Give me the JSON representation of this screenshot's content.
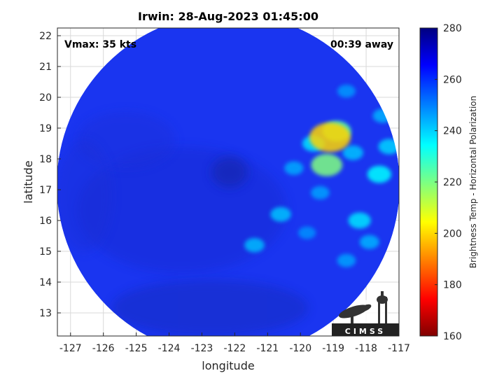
{
  "chart_data": {
    "type": "heatmap",
    "title": "Irwin: 28-Aug-2023 01:45:00",
    "xlabel": "longitude",
    "ylabel": "latitude",
    "xlim": [
      -127.4,
      -117
    ],
    "ylim": [
      12.25,
      22.25
    ],
    "x_ticks": [
      -127,
      -126,
      -125,
      -124,
      -123,
      -122,
      -121,
      -120,
      -119,
      -118,
      -117
    ],
    "y_ticks": [
      13,
      14,
      15,
      16,
      17,
      18,
      19,
      20,
      21,
      22
    ],
    "x_tick_labels": [
      "-127",
      "-126",
      "-125",
      "-124",
      "-123",
      "-122",
      "-121",
      "-120",
      "-119",
      "-118",
      "-117"
    ],
    "y_tick_labels": [
      "13",
      "14",
      "15",
      "16",
      "17",
      "18",
      "19",
      "20",
      "21",
      "22"
    ],
    "grid": true,
    "annotations": {
      "vmax": "Vmax: 35 kts",
      "time_away": "00:39 away"
    },
    "storm_center": {
      "lon": -122.3,
      "lat": 17.7
    },
    "colorbar": {
      "label": "Brightness Temp - Horizontal Polarization",
      "range": [
        160,
        280
      ],
      "ticks": [
        160,
        180,
        200,
        220,
        240,
        260,
        280
      ],
      "tick_labels": [
        "160",
        "180",
        "200",
        "220",
        "240",
        "260",
        "280"
      ],
      "colormap": "jet"
    },
    "features": [
      {
        "lon": -120.2,
        "lat": 17.7,
        "value": 245
      },
      {
        "lon": -119.4,
        "lat": 16.9,
        "value": 246
      },
      {
        "lon": -120.6,
        "lat": 16.2,
        "value": 242
      },
      {
        "lon": -121.4,
        "lat": 15.2,
        "value": 243
      },
      {
        "lon": -119.1,
        "lat": 18.7,
        "value": 200
      },
      {
        "lon": -119.2,
        "lat": 17.8,
        "value": 220
      },
      {
        "lon": -118.9,
        "lat": 18.9,
        "value": 225
      },
      {
        "lon": -119.6,
        "lat": 18.5,
        "value": 238
      },
      {
        "lon": -118.2,
        "lat": 16.0,
        "value": 238
      },
      {
        "lon": -117.6,
        "lat": 17.5,
        "value": 235
      },
      {
        "lon": -118.4,
        "lat": 18.2,
        "value": 242
      },
      {
        "lon": -117.9,
        "lat": 15.3,
        "value": 244
      },
      {
        "lon": -118.6,
        "lat": 14.7,
        "value": 246
      },
      {
        "lon": -117.5,
        "lat": 19.4,
        "value": 244
      },
      {
        "lon": -118.6,
        "lat": 20.2,
        "value": 247
      },
      {
        "lon": -119.8,
        "lat": 15.6,
        "value": 248
      },
      {
        "lon": -117.3,
        "lat": 18.4,
        "value": 240
      }
    ]
  },
  "logo": {
    "text": "CIMSS"
  }
}
